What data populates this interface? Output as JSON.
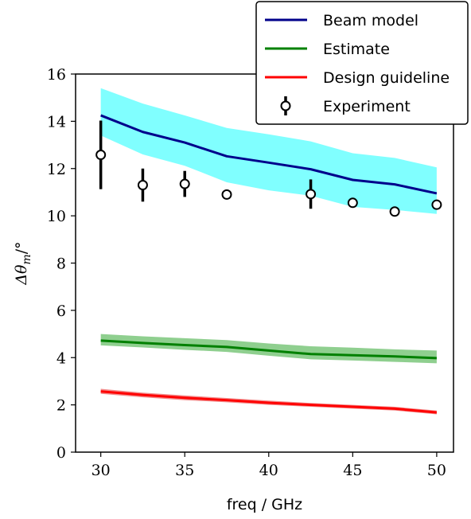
{
  "chart_data": {
    "type": "line",
    "title": "",
    "xlabel": "freq / GHz",
    "ylabel": "Δθ_m/°",
    "ylabel_parts": {
      "main": "Δθ",
      "sub": "m",
      "unit": "/°"
    },
    "xlim": [
      28.5,
      51.0
    ],
    "ylim": [
      0,
      16
    ],
    "xticks": [
      30,
      35,
      40,
      45,
      50
    ],
    "yticks": [
      0,
      2,
      4,
      6,
      8,
      10,
      12,
      14,
      16
    ],
    "grid": false,
    "legend_position": "top-right",
    "series": [
      {
        "name": "Beam model",
        "kind": "line_with_band",
        "color": "#00008b",
        "band_color": "#80ffff",
        "x": [
          30,
          32.5,
          35,
          37.5,
          40,
          42.5,
          45,
          47.5,
          50
        ],
        "y": [
          14.25,
          13.55,
          13.1,
          12.52,
          12.25,
          11.97,
          11.52,
          11.33,
          10.95
        ],
        "band_upper": [
          15.4,
          14.75,
          14.25,
          13.72,
          13.45,
          13.15,
          12.65,
          12.45,
          12.05
        ],
        "band_lower": [
          13.4,
          12.6,
          12.12,
          11.42,
          11.08,
          10.85,
          10.38,
          10.25,
          10.08
        ]
      },
      {
        "name": "Estimate",
        "kind": "line_with_band",
        "color": "#008000",
        "band_color": "#8fcf8f",
        "x": [
          30,
          32.5,
          35,
          37.5,
          40,
          42.5,
          45,
          47.5,
          50
        ],
        "y": [
          4.72,
          4.62,
          4.53,
          4.45,
          4.3,
          4.15,
          4.1,
          4.05,
          3.98
        ],
        "band_upper": [
          5.0,
          4.9,
          4.82,
          4.74,
          4.6,
          4.48,
          4.42,
          4.35,
          4.3
        ],
        "band_lower": [
          4.52,
          4.43,
          4.33,
          4.24,
          4.08,
          3.93,
          3.88,
          3.82,
          3.76
        ]
      },
      {
        "name": "Design guideline",
        "kind": "line_with_band",
        "color": "#ff0000",
        "band_color": "#f28b8b",
        "x": [
          30,
          32.5,
          35,
          37.5,
          40,
          42.5,
          45,
          47.5,
          50
        ],
        "y": [
          2.57,
          2.42,
          2.3,
          2.2,
          2.09,
          2.0,
          1.92,
          1.84,
          1.68
        ],
        "band_upper": [
          2.68,
          2.52,
          2.4,
          2.29,
          2.18,
          2.08,
          2.0,
          1.92,
          1.76
        ],
        "band_lower": [
          2.47,
          2.32,
          2.2,
          2.11,
          2.0,
          1.92,
          1.84,
          1.76,
          1.6
        ]
      },
      {
        "name": "Experiment",
        "kind": "errorbar",
        "color": "#000000",
        "x": [
          30,
          32.5,
          35,
          37.5,
          42.5,
          45,
          47.5,
          50
        ],
        "y": [
          12.58,
          11.3,
          11.35,
          10.9,
          10.92,
          10.55,
          10.18,
          10.47
        ],
        "err": [
          1.45,
          0.7,
          0.55,
          0.0,
          0.62,
          0.0,
          0.0,
          0.0
        ]
      }
    ]
  }
}
